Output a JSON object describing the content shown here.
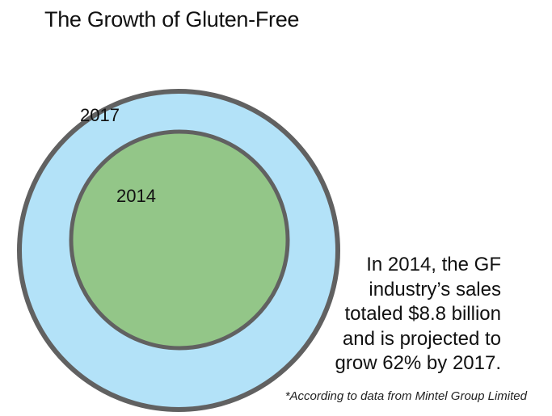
{
  "title": "The Growth of Gluten-Free",
  "chart_data": {
    "type": "nested-circles",
    "circles": [
      {
        "label": "2017",
        "fill": "#b3e2f8",
        "stroke": "#616161"
      },
      {
        "label": "2014",
        "fill": "#93c688",
        "stroke": "#616161"
      }
    ]
  },
  "caption": {
    "lines": [
      "In 2014, the GF",
      "industry’s sales",
      "totaled $8.8 billion",
      "and is projected to",
      "grow 62% by 2017."
    ]
  },
  "footnote": "*According to data from Mintel Group Limited"
}
